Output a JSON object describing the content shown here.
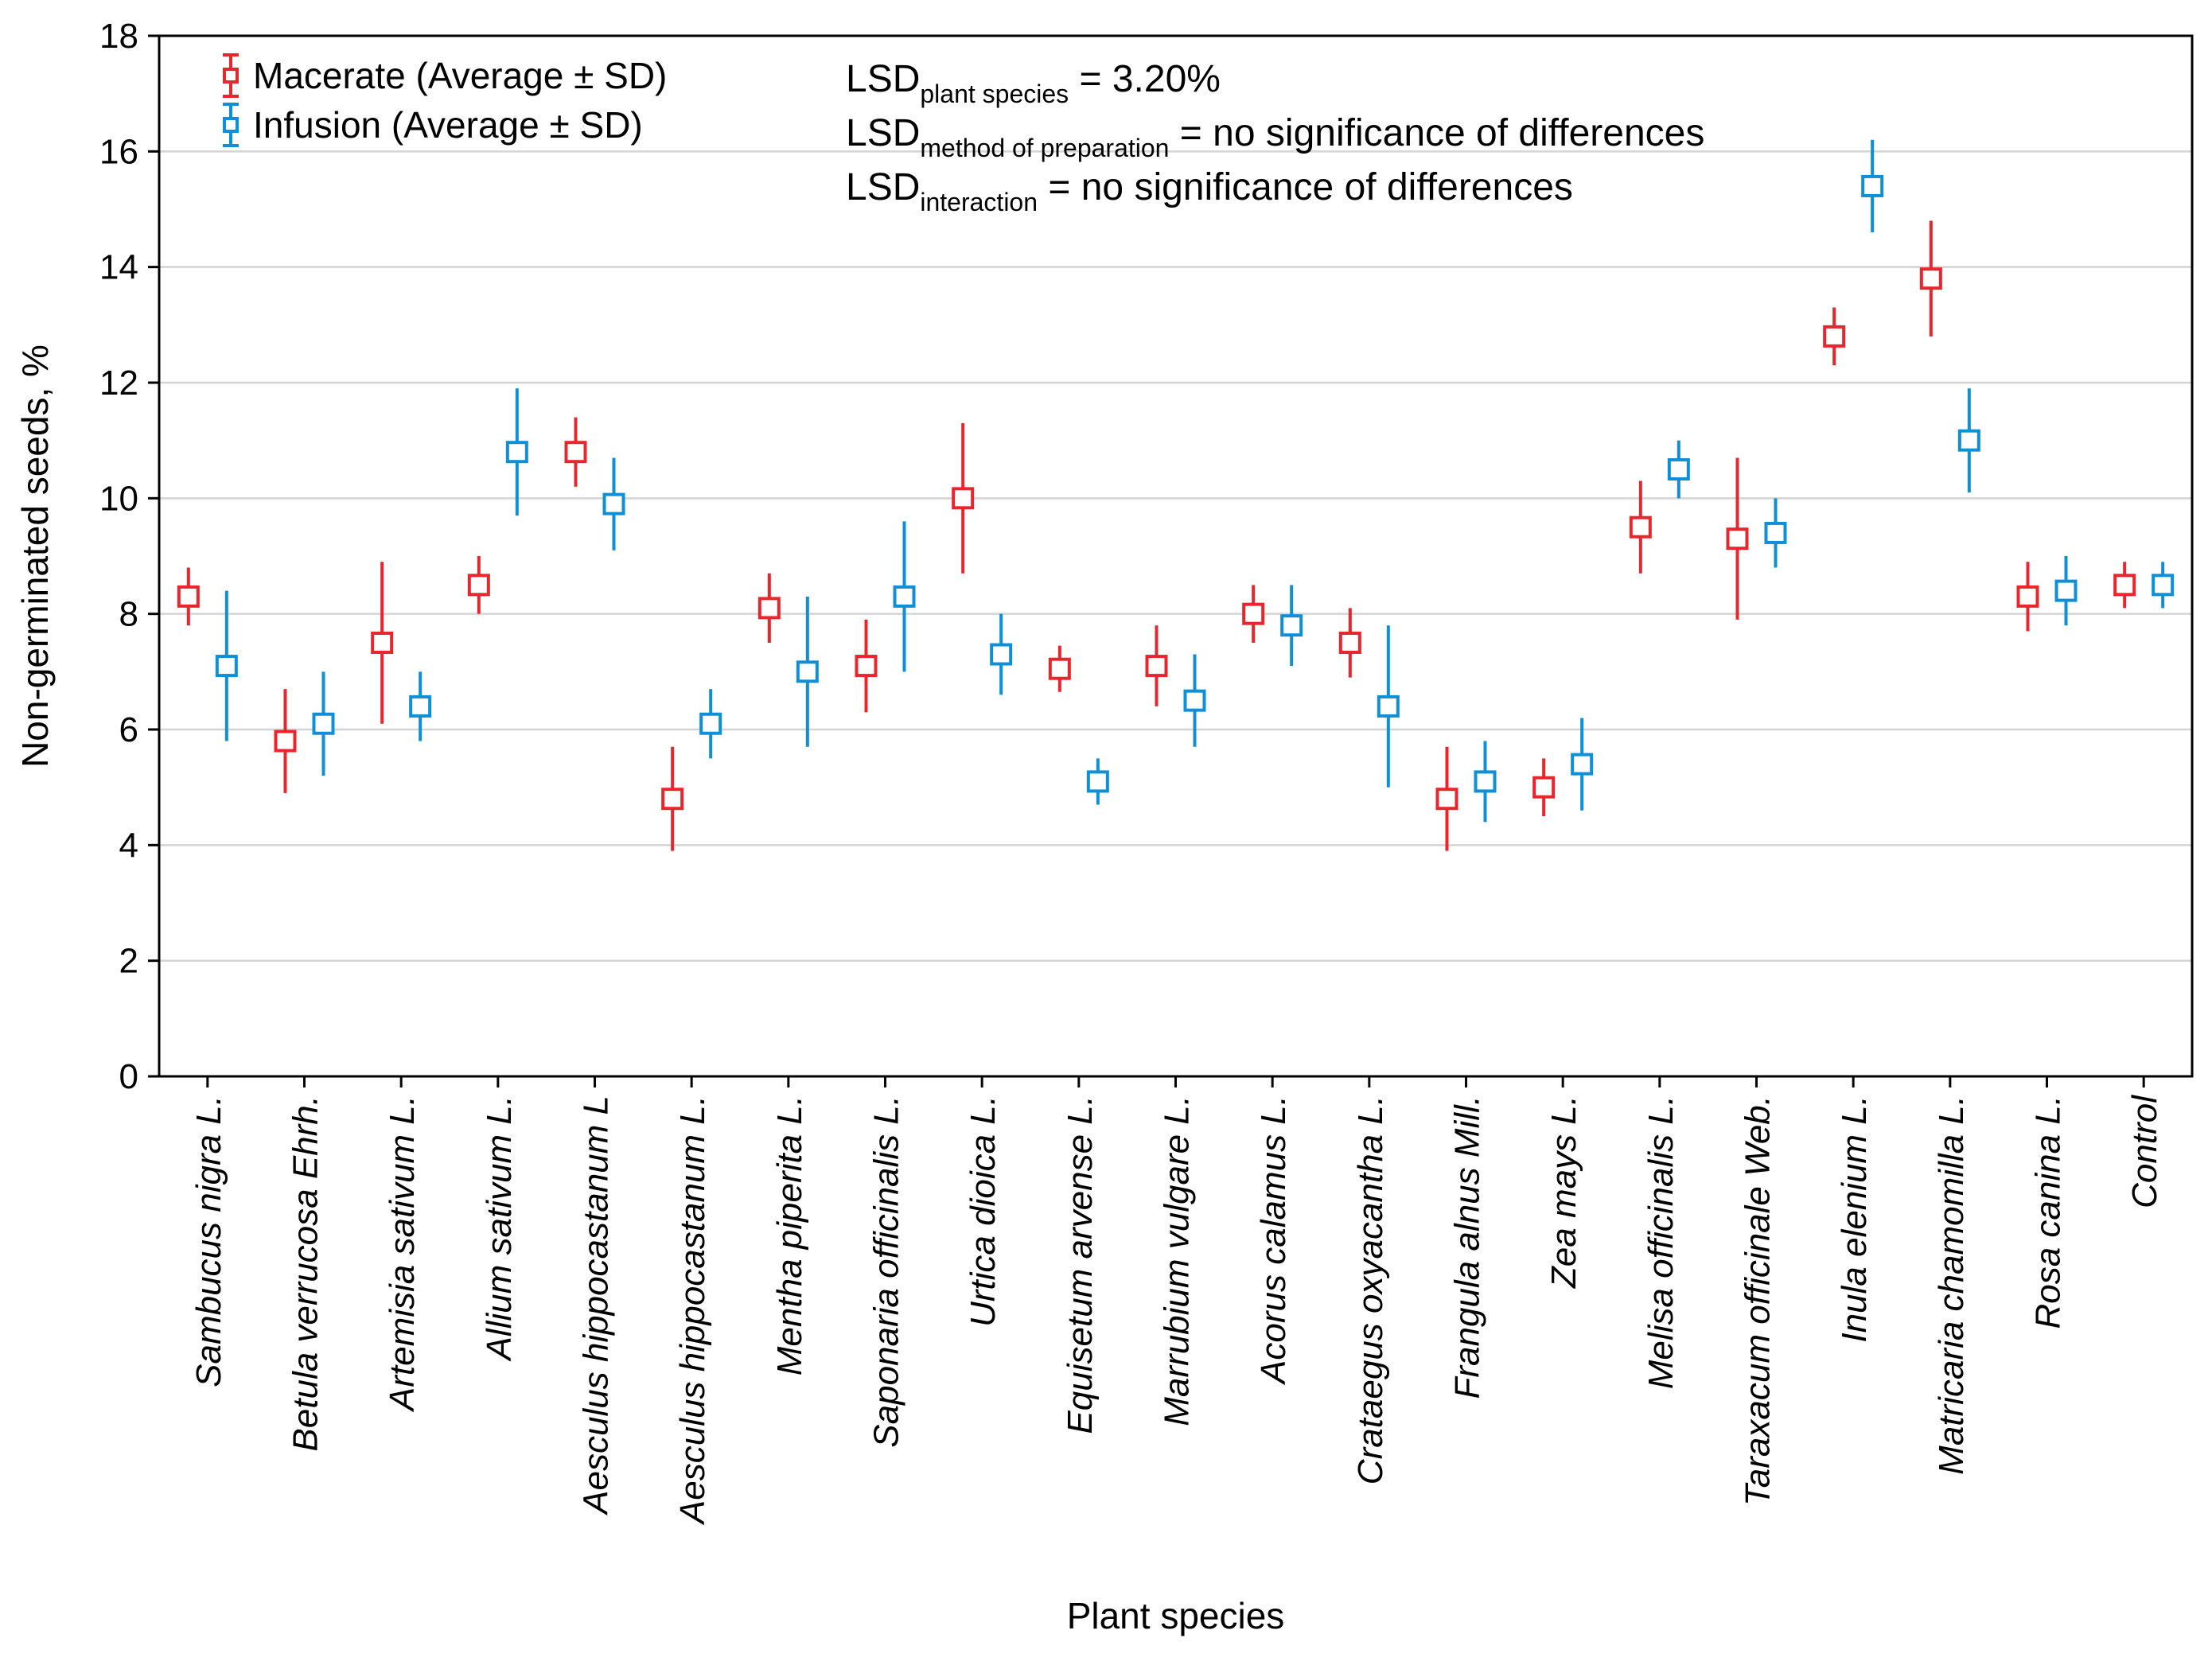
{
  "chart_data": {
    "type": "scatter",
    "title": "",
    "xlabel": "Plant species",
    "ylabel": "Non-germinated seeds, %",
    "ylim": [
      0,
      18
    ],
    "yticks": [
      0,
      2,
      4,
      6,
      8,
      10,
      12,
      14,
      16,
      18
    ],
    "grid": true,
    "legend_position": "top-left",
    "categories": [
      "Sambucus nigra L.",
      "Betula verrucosa Ehrh.",
      "Artemisia sativum L.",
      "Allium sativum L.",
      "Aesculus hippocastanum L",
      "Aesculus hippocastanum L.",
      "Mentha piperita L.",
      "Saponaria officinalis L.",
      "Urtica dioica L.",
      "Equisetum arvense L.",
      "Marrubium vulgare L.",
      "Acorus calamus L.",
      "Crataegus oxyacantha L.",
      "Frangula alnus Mill.",
      "Zea mays L.",
      "Melisa officinalis L.",
      "Taraxacum officinale Web.",
      "Inula elenium L.",
      "Matricaria chamomilla L.",
      "Rosa canina L.",
      "Control"
    ],
    "series": [
      {
        "name": "Macerate (Average ± SD)",
        "color": "#e8262d",
        "values": [
          8.3,
          5.8,
          7.5,
          8.5,
          10.8,
          4.8,
          8.1,
          7.1,
          10.0,
          7.05,
          7.1,
          8.0,
          7.5,
          4.8,
          5.0,
          9.5,
          9.3,
          12.8,
          13.8,
          8.3,
          8.5
        ],
        "sd": [
          0.5,
          0.9,
          1.4,
          0.5,
          0.6,
          0.9,
          0.6,
          0.8,
          1.3,
          0.4,
          0.7,
          0.5,
          0.6,
          0.9,
          0.5,
          0.8,
          1.4,
          0.5,
          1.0,
          0.6,
          0.4
        ]
      },
      {
        "name": "Infusion (Average ± SD)",
        "color": "#0f8fd6",
        "values": [
          7.1,
          6.1,
          6.4,
          10.8,
          9.9,
          6.1,
          7.0,
          8.3,
          7.3,
          5.1,
          6.5,
          7.8,
          6.4,
          5.1,
          5.4,
          10.5,
          9.4,
          15.4,
          11.0,
          8.4,
          8.5
        ],
        "sd": [
          1.3,
          0.9,
          0.6,
          1.1,
          0.8,
          0.6,
          1.3,
          1.3,
          0.7,
          0.4,
          0.8,
          0.7,
          1.4,
          0.7,
          0.8,
          0.5,
          0.6,
          0.8,
          0.9,
          0.6,
          0.4
        ]
      }
    ],
    "annotations": [
      {
        "main": "LSD",
        "sub": "plant species",
        "rest": " = 3.20%"
      },
      {
        "main": "LSD",
        "sub": "method of preparation",
        "rest": " = no significance of differences"
      },
      {
        "main": "LSD",
        "sub": "interaction",
        "rest": " = no significance of differences"
      }
    ]
  }
}
